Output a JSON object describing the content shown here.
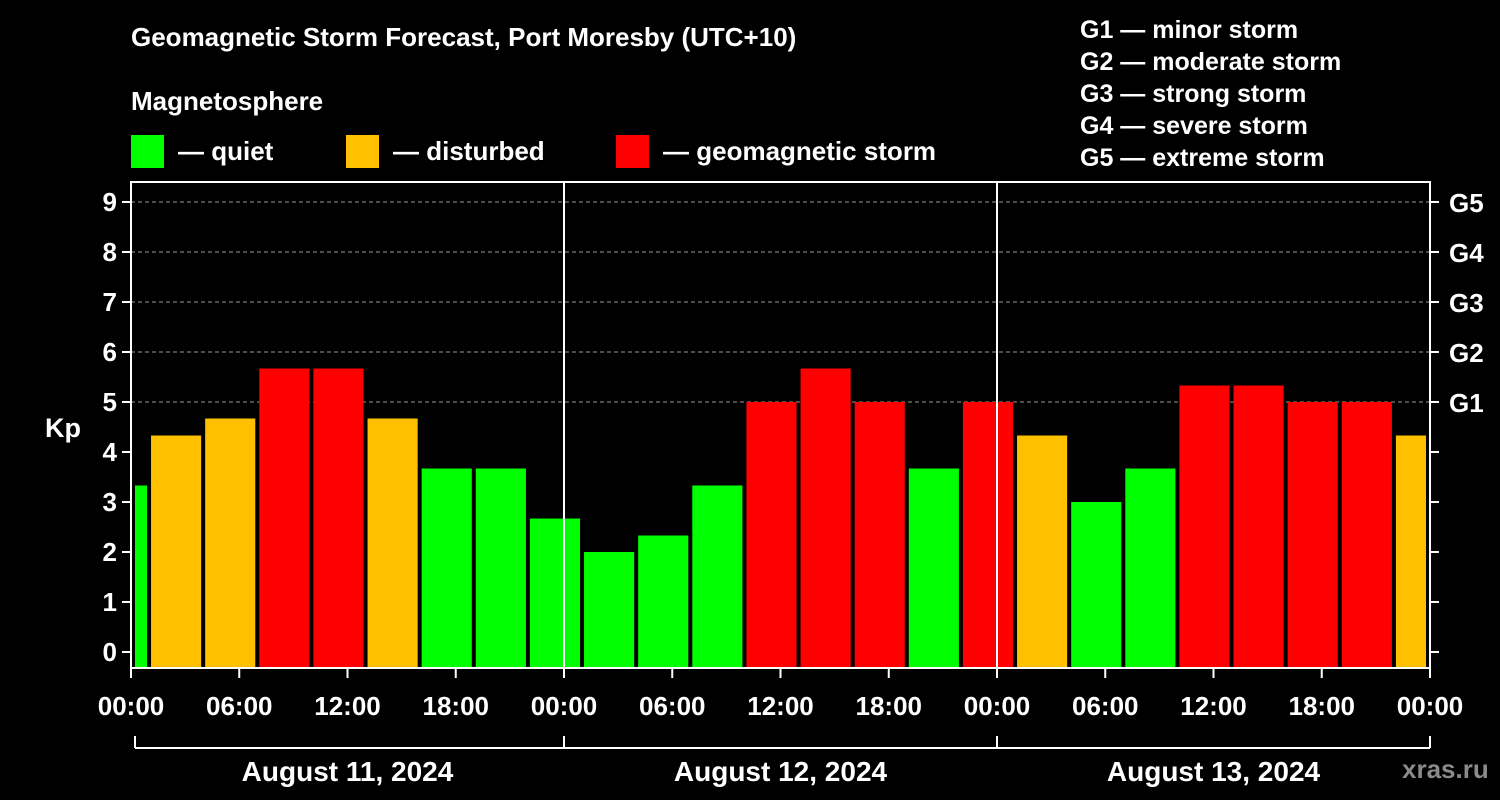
{
  "chart_data": {
    "type": "bar",
    "title": "Geomagnetic Storm Forecast, Port Moresby (UTC+10)",
    "ylabel": "Kp",
    "ylim": [
      0,
      9
    ],
    "yticks": [
      "0",
      "1",
      "2",
      "3",
      "4",
      "5",
      "6",
      "7",
      "8",
      "9"
    ],
    "storm_levels": [
      {
        "value": 5,
        "label": "G1"
      },
      {
        "value": 6,
        "label": "G2"
      },
      {
        "value": 7,
        "label": "G3"
      },
      {
        "value": 8,
        "label": "G4"
      },
      {
        "value": 9,
        "label": "G5"
      }
    ],
    "x_tick_labels": [
      "00:00",
      "06:00",
      "12:00",
      "18:00",
      "00:00",
      "06:00",
      "12:00",
      "18:00",
      "00:00",
      "06:00",
      "12:00",
      "18:00",
      "00:00"
    ],
    "days": [
      "August 11, 2024",
      "August 12, 2024",
      "August 13, 2024"
    ],
    "bars": [
      {
        "start_hour": 0,
        "end_hour": 1,
        "kp": 3.33,
        "status": "quiet"
      },
      {
        "start_hour": 1,
        "end_hour": 4,
        "kp": 4.33,
        "status": "disturbed"
      },
      {
        "start_hour": 4,
        "end_hour": 7,
        "kp": 4.67,
        "status": "disturbed"
      },
      {
        "start_hour": 7,
        "end_hour": 10,
        "kp": 5.67,
        "status": "storm"
      },
      {
        "start_hour": 10,
        "end_hour": 13,
        "kp": 5.67,
        "status": "storm"
      },
      {
        "start_hour": 13,
        "end_hour": 16,
        "kp": 4.67,
        "status": "disturbed"
      },
      {
        "start_hour": 16,
        "end_hour": 19,
        "kp": 3.67,
        "status": "quiet"
      },
      {
        "start_hour": 19,
        "end_hour": 22,
        "kp": 3.67,
        "status": "quiet"
      },
      {
        "start_hour": 22,
        "end_hour": 25,
        "kp": 2.67,
        "status": "quiet"
      },
      {
        "start_hour": 25,
        "end_hour": 28,
        "kp": 2.0,
        "status": "quiet"
      },
      {
        "start_hour": 28,
        "end_hour": 31,
        "kp": 2.33,
        "status": "quiet"
      },
      {
        "start_hour": 31,
        "end_hour": 34,
        "kp": 3.33,
        "status": "quiet"
      },
      {
        "start_hour": 34,
        "end_hour": 37,
        "kp": 5.0,
        "status": "storm"
      },
      {
        "start_hour": 37,
        "end_hour": 40,
        "kp": 5.67,
        "status": "storm"
      },
      {
        "start_hour": 40,
        "end_hour": 43,
        "kp": 5.0,
        "status": "storm"
      },
      {
        "start_hour": 43,
        "end_hour": 46,
        "kp": 3.67,
        "status": "quiet"
      },
      {
        "start_hour": 46,
        "end_hour": 49,
        "kp": 5.0,
        "status": "storm"
      },
      {
        "start_hour": 49,
        "end_hour": 52,
        "kp": 4.33,
        "status": "disturbed"
      },
      {
        "start_hour": 52,
        "end_hour": 55,
        "kp": 3.0,
        "status": "quiet"
      },
      {
        "start_hour": 55,
        "end_hour": 58,
        "kp": 3.67,
        "status": "quiet"
      },
      {
        "start_hour": 58,
        "end_hour": 61,
        "kp": 5.33,
        "status": "storm"
      },
      {
        "start_hour": 61,
        "end_hour": 64,
        "kp": 5.33,
        "status": "storm"
      },
      {
        "start_hour": 64,
        "end_hour": 67,
        "kp": 5.0,
        "status": "storm"
      },
      {
        "start_hour": 67,
        "end_hour": 70,
        "kp": 5.0,
        "status": "storm"
      },
      {
        "start_hour": 70,
        "end_hour": 72,
        "kp": 4.33,
        "status": "disturbed"
      }
    ],
    "x_range_hours": [
      0,
      72
    ],
    "day_dividers_hours": [
      24,
      48
    ]
  },
  "legend": {
    "heading": "Magnetosphere",
    "items": [
      {
        "label": "— quiet",
        "color": "#00ff00"
      },
      {
        "label": "— disturbed",
        "color": "#ffc000"
      },
      {
        "label": "— geomagnetic storm",
        "color": "#ff0000"
      }
    ]
  },
  "status_colors": {
    "quiet": "#00ff00",
    "disturbed": "#ffc000",
    "storm": "#ff0000"
  },
  "storm_scale": [
    "G1 — minor storm",
    "G2 — moderate storm",
    "G3 — strong storm",
    "G4 — severe storm",
    "G5 — extreme storm"
  ],
  "watermark": "xras.ru"
}
